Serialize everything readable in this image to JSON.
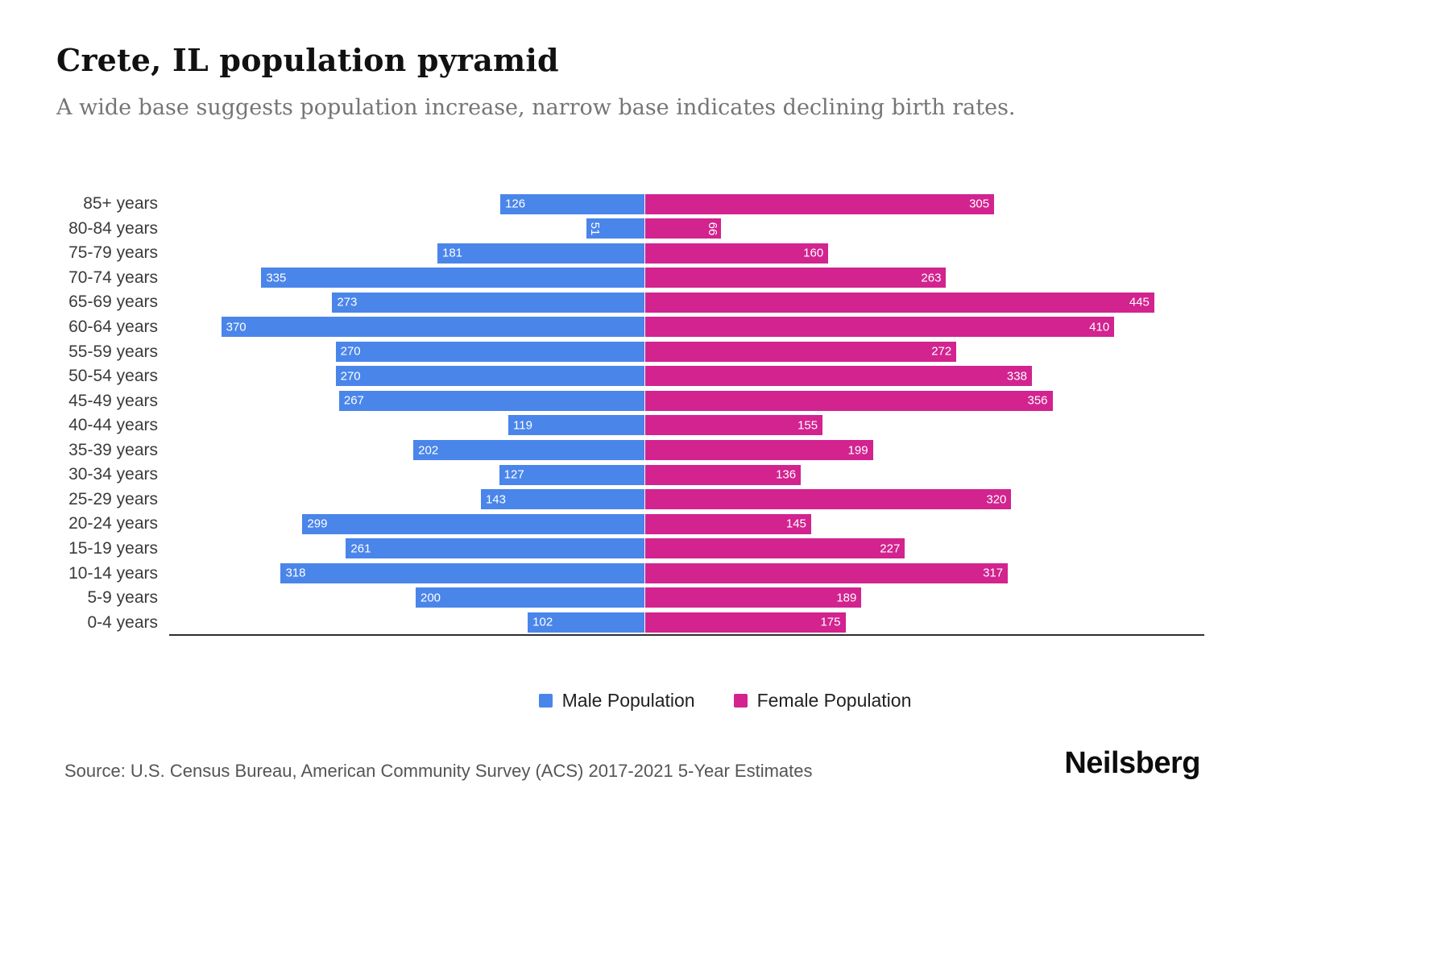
{
  "header": {
    "title": "Crete, IL population pyramid",
    "subtitle": "A wide base suggests population increase, narrow base indicates declining birth rates."
  },
  "legend": {
    "male_label": "Male Population",
    "female_label": "Female Population"
  },
  "footer": {
    "source": "Source: U.S. Census Bureau, American Community Survey (ACS) 2017-2021 5-Year Estimates",
    "brand": "Neilsberg"
  },
  "colors": {
    "male": "#4a85ea",
    "female": "#d2238f",
    "axis": "#2f2f2f"
  },
  "chart_data": {
    "type": "bar",
    "variant": "population-pyramid",
    "orientation": "horizontal",
    "title": "Crete, IL population pyramid",
    "categories": [
      "85+ years",
      "80-84 years",
      "75-79 years",
      "70-74 years",
      "65-69 years",
      "60-64 years",
      "55-59 years",
      "50-54 years",
      "45-49 years",
      "40-44 years",
      "35-39 years",
      "30-34 years",
      "25-29 years",
      "20-24 years",
      "15-19 years",
      "10-14 years",
      "5-9 years",
      "0-4 years"
    ],
    "series": [
      {
        "name": "Male Population",
        "side": "left",
        "color": "#4a85ea",
        "values": [
          126,
          51,
          181,
          335,
          273,
          370,
          270,
          270,
          267,
          119,
          202,
          127,
          143,
          299,
          261,
          318,
          200,
          102
        ]
      },
      {
        "name": "Female Population",
        "side": "right",
        "color": "#d2238f",
        "values": [
          305,
          66,
          160,
          263,
          445,
          410,
          272,
          338,
          356,
          155,
          199,
          136,
          320,
          145,
          227,
          317,
          189,
          175
        ]
      }
    ],
    "value_labels": "inside-outer-end",
    "xlim_each_side": [
      0,
      490
    ],
    "grid": false,
    "legend_position": "bottom-center"
  }
}
